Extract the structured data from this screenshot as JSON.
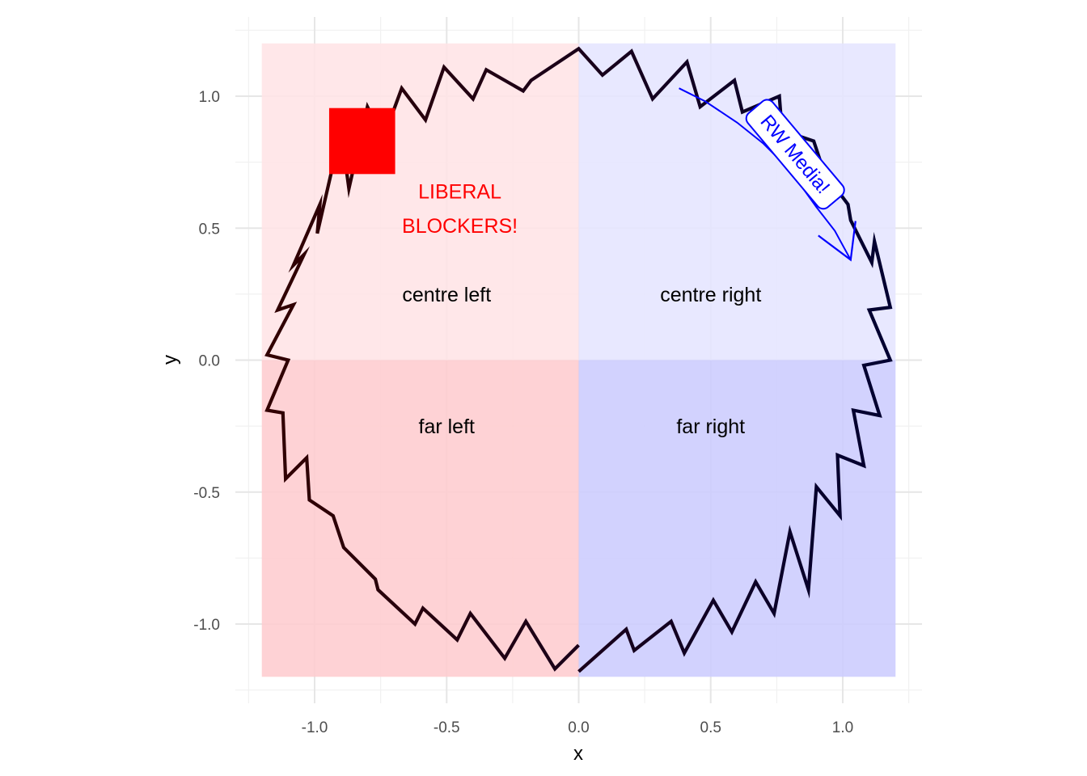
{
  "chart_data": {
    "type": "line",
    "xlabel": "x",
    "ylabel": "y",
    "xlim": [
      -1.25,
      1.25
    ],
    "ylim": [
      -1.25,
      1.25
    ],
    "x_ticks": [
      -1.0,
      -0.5,
      0.0,
      0.5,
      1.0
    ],
    "y_ticks": [
      -1.0,
      -0.5,
      0.0,
      0.5,
      1.0
    ],
    "x_tick_labels": [
      "-1.0",
      "-0.5",
      "0.0",
      "0.5",
      "1.0"
    ],
    "y_tick_labels": [
      "-1.0",
      "-0.5",
      "0.0",
      "0.5",
      "1.0"
    ],
    "grid": true,
    "regions": [
      {
        "label": "centre left",
        "xmin": -1.2,
        "xmax": 0,
        "ymin": 0,
        "ymax": 1.2,
        "fill": "#ffe4e6",
        "label_x": -0.5,
        "label_y": 0.25
      },
      {
        "label": "centre right",
        "xmin": 0,
        "xmax": 1.2,
        "ymin": 0,
        "ymax": 1.2,
        "fill": "#e5e5ff",
        "label_x": 0.5,
        "label_y": 0.25
      },
      {
        "label": "far left",
        "xmin": -1.2,
        "xmax": 0,
        "ymin": -1.2,
        "ymax": 0,
        "fill": "#fecccf",
        "label_x": -0.5,
        "label_y": -0.25
      },
      {
        "label": "far right",
        "xmin": 0,
        "xmax": 1.2,
        "ymin": -1.2,
        "ymax": 0,
        "fill": "#ccccfe",
        "label_x": 0.5,
        "label_y": -0.25
      }
    ],
    "series": [
      {
        "x": [
          0.0,
          0.18,
          0.21,
          0.35,
          0.4,
          0.51,
          0.58,
          0.67,
          0.74,
          0.8,
          0.87,
          0.9,
          0.99,
          0.98,
          1.08,
          1.04,
          1.14,
          1.08,
          1.18,
          1.1,
          1.18,
          1.12,
          1.11,
          1.03,
          1.02,
          0.93,
          0.89,
          0.77,
          0.76,
          0.62,
          0.59,
          0.46,
          0.41,
          0.28,
          0.2,
          0.09,
          0.0,
          -0.18,
          -0.21,
          -0.35,
          -0.4,
          -0.51,
          -0.58,
          -0.67,
          -0.74,
          -0.8,
          -0.87,
          -0.9,
          -0.99,
          -0.98,
          -1.08,
          -1.04,
          -1.14,
          -1.08,
          -1.18,
          -1.1,
          -1.18,
          -1.12,
          -1.11,
          -1.03,
          -1.02,
          -0.93,
          -0.89,
          -0.77,
          -0.76,
          -0.62,
          -0.59,
          -0.46,
          -0.41,
          -0.28,
          -0.2,
          -0.09,
          0.0
        ],
        "y": [
          -1.18,
          -1.02,
          -1.1,
          -0.99,
          -1.11,
          -0.91,
          -1.03,
          -0.84,
          -0.96,
          -0.65,
          -0.87,
          -0.48,
          -0.59,
          -0.36,
          -0.4,
          -0.19,
          -0.21,
          -0.02,
          0.0,
          0.19,
          0.2,
          0.45,
          0.37,
          0.53,
          0.59,
          0.71,
          0.83,
          0.87,
          1.0,
          0.94,
          1.06,
          0.96,
          1.13,
          0.99,
          1.17,
          1.08,
          1.18,
          1.06,
          1.02,
          1.1,
          0.99,
          1.11,
          0.91,
          1.03,
          0.84,
          0.96,
          0.65,
          0.87,
          0.48,
          0.59,
          0.36,
          0.4,
          0.19,
          0.21,
          0.02,
          0.0,
          -0.19,
          -0.2,
          -0.45,
          -0.37,
          -0.53,
          -0.59,
          -0.71,
          -0.83,
          -0.87,
          -1.0,
          -0.94,
          -1.06,
          -0.96,
          -1.13,
          -0.99,
          -1.17,
          -1.08
        ]
      }
    ],
    "color_scale": {
      "left": "#330000",
      "right": "#000033"
    },
    "marker": {
      "type": "square",
      "x": -0.82,
      "y": 0.83,
      "half_size": 0.125,
      "color": "#ff0000"
    },
    "text_annotations": [
      {
        "text": "LIBERAL",
        "x": -0.45,
        "y": 0.64,
        "color": "#ff0000"
      },
      {
        "text": "BLOCKERS!",
        "x": -0.45,
        "y": 0.51,
        "color": "#ff0000"
      }
    ],
    "arrow_annotation": {
      "text": "RW Media!",
      "color": "#0000ff",
      "curve_x": [
        0.38,
        0.48,
        0.6,
        0.7,
        0.8,
        0.9,
        0.97,
        1.03
      ],
      "curve_y": [
        1.03,
        0.98,
        0.9,
        0.82,
        0.72,
        0.58,
        0.49,
        0.38
      ],
      "tip_x": 1.03,
      "tip_y": 0.38,
      "label_x": 0.82,
      "label_y": 0.78
    }
  }
}
